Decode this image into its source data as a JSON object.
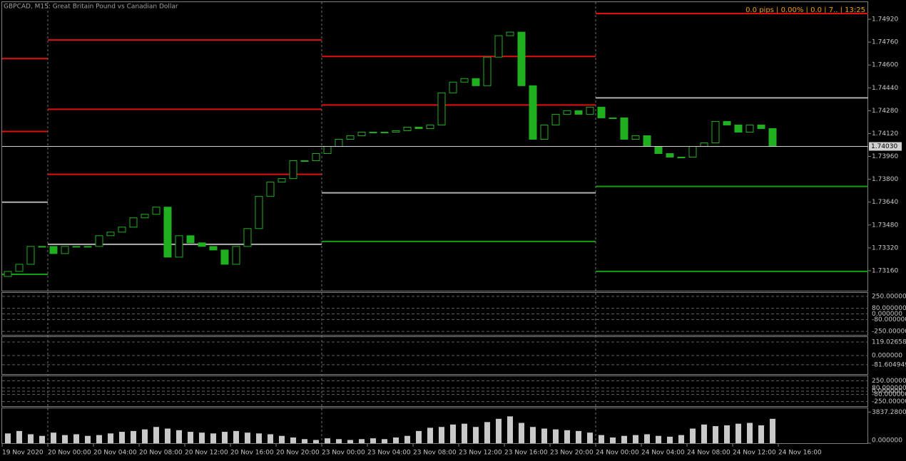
{
  "chart_data": {
    "type": "candlestick",
    "title": "GBPCAD, M15:  Great Britain Pound vs Canadian Dollar",
    "info": "0.0 pips | 0.00% |  0.0  | 7.. | 13:25",
    "color": "#1fb01f",
    "ylim": [
      1.7302,
      1.7504
    ],
    "yticks": [
      {
        "value": 1.7492,
        "label": "1.74920"
      },
      {
        "value": 1.7476,
        "label": "1.74760"
      },
      {
        "value": 1.746,
        "label": "1.74600"
      },
      {
        "value": 1.7444,
        "label": "1.74440"
      },
      {
        "value": 1.7428,
        "label": "1.74280"
      },
      {
        "value": 1.7412,
        "label": "1.74120"
      },
      {
        "value": 1.7396,
        "label": "1.73960"
      },
      {
        "value": 1.738,
        "label": "1.73800"
      },
      {
        "value": 1.7364,
        "label": "1.73640"
      },
      {
        "value": 1.7348,
        "label": "1.73480"
      },
      {
        "value": 1.7332,
        "label": "1.73320"
      },
      {
        "value": 1.7316,
        "label": "1.73160"
      }
    ],
    "last_price": {
      "value": 1.7403,
      "label": "1.74030"
    },
    "open": [
      1.7312,
      1.73155,
      1.73205,
      1.7333,
      1.7333,
      1.7328,
      1.7333,
      1.7333,
      1.7333,
      1.73405,
      1.7343,
      1.73465,
      1.7353,
      1.73555,
      1.73605,
      1.73255,
      1.73405,
      1.73355,
      1.7333,
      1.73305,
      1.73205,
      1.7333,
      1.73455,
      1.7368,
      1.7378,
      1.73805,
      1.7393,
      1.7393,
      1.7398,
      1.7403,
      1.7408,
      1.74105,
      1.7413,
      1.7413,
      1.7413,
      1.7414,
      1.74165,
      1.74155,
      1.7418,
      1.74405,
      1.7448,
      1.74505,
      1.74455,
      1.74655,
      1.74805,
      1.7483,
      1.74455,
      1.7408,
      1.7418,
      1.74255,
      1.7428,
      1.74255,
      1.74305,
      1.7423,
      1.7423,
      1.7408,
      1.74105,
      1.7403,
      1.7398,
      1.73955,
      1.73955,
      1.7403,
      1.74055,
      1.74205,
      1.7418,
      1.7413,
      1.7418,
      1.74155
    ],
    "close": [
      1.73155,
      1.73205,
      1.7333,
      1.7333,
      1.7328,
      1.7333,
      1.7333,
      1.7333,
      1.73405,
      1.7343,
      1.73465,
      1.7353,
      1.73555,
      1.73605,
      1.73255,
      1.73405,
      1.73355,
      1.7333,
      1.73305,
      1.73205,
      1.7333,
      1.73455,
      1.7368,
      1.7378,
      1.73805,
      1.7393,
      1.7393,
      1.7398,
      1.7403,
      1.7408,
      1.74105,
      1.7413,
      1.7413,
      1.7413,
      1.7414,
      1.74165,
      1.74155,
      1.7418,
      1.74405,
      1.7448,
      1.74505,
      1.74455,
      1.74655,
      1.74805,
      1.7483,
      1.74455,
      1.7408,
      1.7418,
      1.74255,
      1.7428,
      1.74255,
      1.74305,
      1.7423,
      1.7423,
      1.7408,
      1.74105,
      1.7403,
      1.7398,
      1.73955,
      1.73955,
      1.7403,
      1.74055,
      1.74205,
      1.7418,
      1.7413,
      1.7418,
      1.74155,
      1.7403
    ],
    "sessions": [
      {
        "start": 0,
        "levels": [
          {
            "price": 1.74645,
            "color": "#e01010"
          },
          {
            "price": 1.74135,
            "color": "#e01010"
          },
          {
            "price": 1.7364,
            "color": "#b0b0b0"
          },
          {
            "price": 1.73135,
            "color": "#10a010"
          }
        ]
      },
      {
        "start": 4,
        "levels": [
          {
            "price": 1.74775,
            "color": "#e01010"
          },
          {
            "price": 1.7429,
            "color": "#e01010"
          },
          {
            "price": 1.73835,
            "color": "#e01010"
          },
          {
            "price": 1.73345,
            "color": "#b0b0b0"
          }
        ]
      },
      {
        "start": 28,
        "levels": [
          {
            "price": 1.7466,
            "color": "#e01010"
          },
          {
            "price": 1.7432,
            "color": "#e01010"
          },
          {
            "price": 1.73705,
            "color": "#b0b0b0"
          },
          {
            "price": 1.73365,
            "color": "#10a010"
          }
        ]
      },
      {
        "start": 52,
        "levels": [
          {
            "price": 1.7496,
            "color": "#e01010"
          },
          {
            "price": 1.7437,
            "color": "#b0b0b0"
          },
          {
            "price": 1.7375,
            "color": "#10a010"
          },
          {
            "price": 1.73155,
            "color": "#10a010"
          }
        ]
      }
    ],
    "time_labels": [
      "19 Nov 2020",
      "20 Nov 00:00",
      "20 Nov 04:00",
      "20 Nov 08:00",
      "20 Nov 12:00",
      "20 Nov 16:00",
      "20 Nov 20:00",
      "23 Nov 00:00",
      "23 Nov 04:00",
      "23 Nov 08:00",
      "23 Nov 12:00",
      "23 Nov 16:00",
      "23 Nov 20:00",
      "24 Nov 00:00",
      "24 Nov 04:00",
      "24 Nov 08:00",
      "24 Nov 12:00",
      "24 Nov 16:00"
    ],
    "indicators": [
      {
        "ylim": [
          -300,
          300
        ],
        "yticks": [
          {
            "value": 250,
            "label": "250.000000"
          },
          {
            "value": 80,
            "label": "80.000000"
          },
          {
            "value": 0,
            "label": "0.000000"
          },
          {
            "value": -80,
            "label": "-80.000000"
          },
          {
            "value": -250,
            "label": "-250.000000"
          }
        ]
      },
      {
        "ylim": [
          -163,
          163
        ],
        "yticks": [
          {
            "value": 119,
            "label": "119.026581"
          },
          {
            "value": 0,
            "label": "0.000000"
          },
          {
            "value": -81,
            "label": "-81.604949"
          }
        ]
      },
      {
        "ylim": [
          -360,
          360
        ],
        "yticks": [
          {
            "value": 250,
            "label": "250.000000"
          },
          {
            "value": 80,
            "label": "80.000000"
          },
          {
            "value": 0,
            "label": "0.000000"
          },
          {
            "value": -80,
            "label": "-80.000000"
          },
          {
            "value": -250,
            "label": "-250.000000"
          }
        ]
      }
    ],
    "volume": {
      "color": "#c8c8c8",
      "ylim": [
        0,
        4300
      ],
      "yticks": [
        {
          "value": 3837.28,
          "label": "3837.280000"
        },
        {
          "value": 0,
          "label": "0.000000"
        }
      ],
      "values": [
        1200,
        1500,
        1100,
        900,
        1300,
        1000,
        1100,
        900,
        1000,
        1200,
        1400,
        1500,
        1700,
        2000,
        1800,
        1600,
        1400,
        1300,
        1200,
        1400,
        1500,
        1300,
        1200,
        1100,
        900,
        700,
        500,
        400,
        600,
        500,
        400,
        500,
        600,
        500,
        700,
        900,
        1500,
        1900,
        2000,
        2300,
        2400,
        2000,
        2600,
        3000,
        3300,
        2500,
        2000,
        1800,
        1700,
        1600,
        1500,
        1300,
        1000,
        700,
        900,
        1000,
        1100,
        900,
        800,
        1000,
        1800,
        2300,
        2100,
        2200,
        2400,
        2500,
        2200,
        3000
      ]
    }
  }
}
